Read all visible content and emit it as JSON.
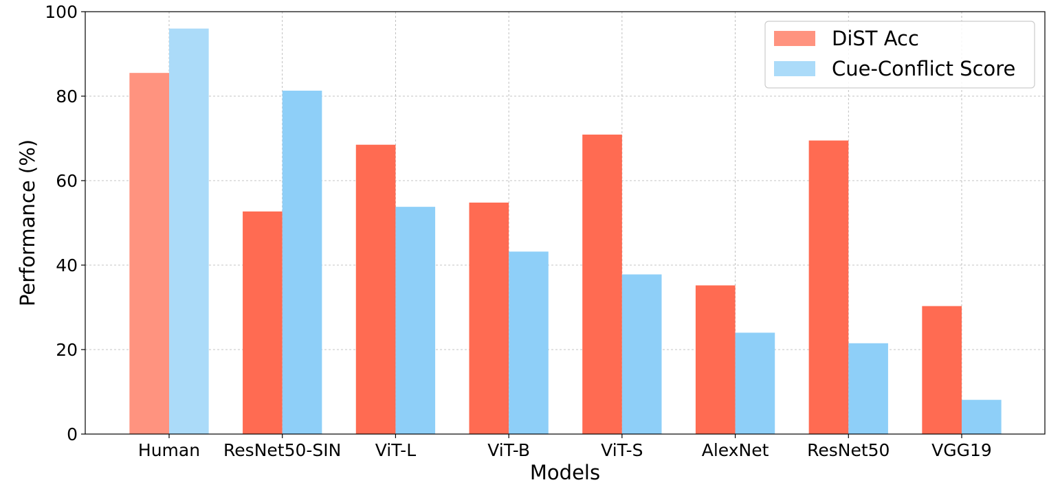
{
  "chart_data": {
    "type": "bar",
    "title": "",
    "xlabel": "Models",
    "ylabel": "Performance (%)",
    "ylim": [
      0,
      100
    ],
    "yticks": [
      0,
      20,
      40,
      60,
      80,
      100
    ],
    "grid": true,
    "legend_position": "top-right",
    "categories": [
      "Human",
      "ResNet50-SIN",
      "ViT-L",
      "ViT-B",
      "ViT-S",
      "AlexNet",
      "ResNet50",
      "VGG19"
    ],
    "series": [
      {
        "name": "DiST Acc",
        "color": "#ff6b52",
        "highlight_color": "#ff937f",
        "values": [
          85.5,
          52.7,
          68.5,
          54.8,
          70.9,
          35.2,
          69.5,
          30.3
        ]
      },
      {
        "name": "Cue-Conflict Score",
        "color": "#8ecff8",
        "highlight_color": "#abdbf9",
        "values": [
          96.0,
          81.3,
          53.8,
          43.2,
          37.8,
          24.0,
          21.5,
          8.1
        ]
      }
    ],
    "highlighted_category": "Human"
  }
}
